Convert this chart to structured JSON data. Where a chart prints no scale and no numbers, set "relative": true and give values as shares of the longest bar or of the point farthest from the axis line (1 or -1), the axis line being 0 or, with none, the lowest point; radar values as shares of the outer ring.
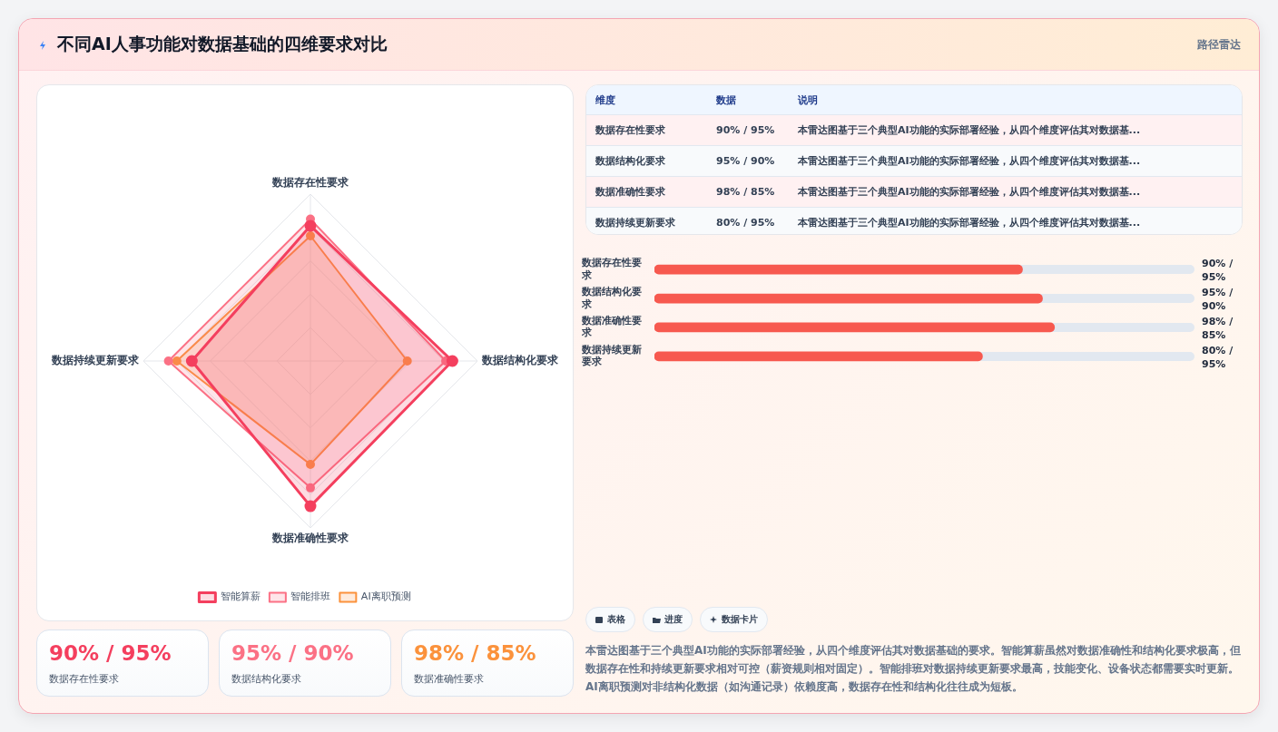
{
  "chart_data": [
    {
      "type": "radar",
      "title": "不同AI人事功能对数据基础的四维要求对比",
      "categories": [
        "数据存在性要求",
        "数据结构化要求",
        "数据准确性要求",
        "数据持续更新要求"
      ],
      "relative": true,
      "legend": "bottom",
      "grid": true,
      "marker": "circle",
      "series": [
        {
          "name": "智能算薪",
          "color": "#f43f5e",
          "values": [
            0.81,
            0.85,
            0.87,
            0.71
          ]
        },
        {
          "name": "智能排班",
          "color": "#fb7185",
          "values": [
            0.85,
            0.81,
            0.76,
            0.85
          ]
        },
        {
          "name": "AI离职预测",
          "color": "#fb923c",
          "values": [
            0.75,
            0.58,
            0.62,
            0.8
          ]
        }
      ]
    },
    {
      "type": "bar",
      "orientation": "horizontal",
      "relative": true,
      "categories": [
        "数据存在性要求",
        "数据结构化要求",
        "数据准确性要求",
        "数据持续更新要求"
      ],
      "values": [
        0.92,
        0.97,
        1,
        0.82
      ],
      "color": "#f7594f",
      "annotations": [
        "90% / 95%",
        "95% / 90%",
        "98% / 85%",
        "80% / 95%"
      ]
    },
    {
      "type": "other",
      "annotations": [
        "维度",
        "数据",
        "说明",
        "数据存在性要求",
        "90% / 95%",
        "本雷达图基于三个典型AI功能的实际部署经验，从四个维度评估其对数据基...",
        "数据结构化要求",
        "95% / 90%",
        "本雷达图基于三个典型AI功能的实际部署经验，从四个维度评估其对数据基...",
        "数据准确性要求",
        "98% / 85%",
        "本雷达图基于三个典型AI功能的实际部署经验，从四个维度评估其对数据基...",
        "数据持续更新要求",
        "80% / 95%",
        "本雷达图基于三个典型AI功能的实际部署经验，从四个维度评估其对数据基..."
      ]
    },
    {
      "type": "other",
      "annotations": [
        "90% / 95%",
        "数据存在性要求",
        "95% / 90%",
        "数据结构化要求",
        "98% / 85%",
        "数据准确性要求"
      ],
      "colors": [
        "#f43f5e",
        "#fb7185",
        "#fb923c"
      ]
    },
    {
      "type": "other",
      "annotations": [
        "路径雷达"
      ]
    },
    {
      "type": "other",
      "annotations": [
        "表格",
        "进度",
        "数据卡片",
        "本雷达图基于三个典型AI功能的实际部署经验，从四个维度评估其对数据基础的要求。智能算薪虽然对数据准确性和结构化要求极高，但数据存在性和持续更新要求相对可控（薪资规则相对固定）。智能排班对数据持续更新要求最高，技能变化、设备状态都需要实时更新。AI离职预测对非结构化数据（如沟通记录）依赖度高，数据存在性和结构化往往成为短板。"
      ]
    }
  ]
}
